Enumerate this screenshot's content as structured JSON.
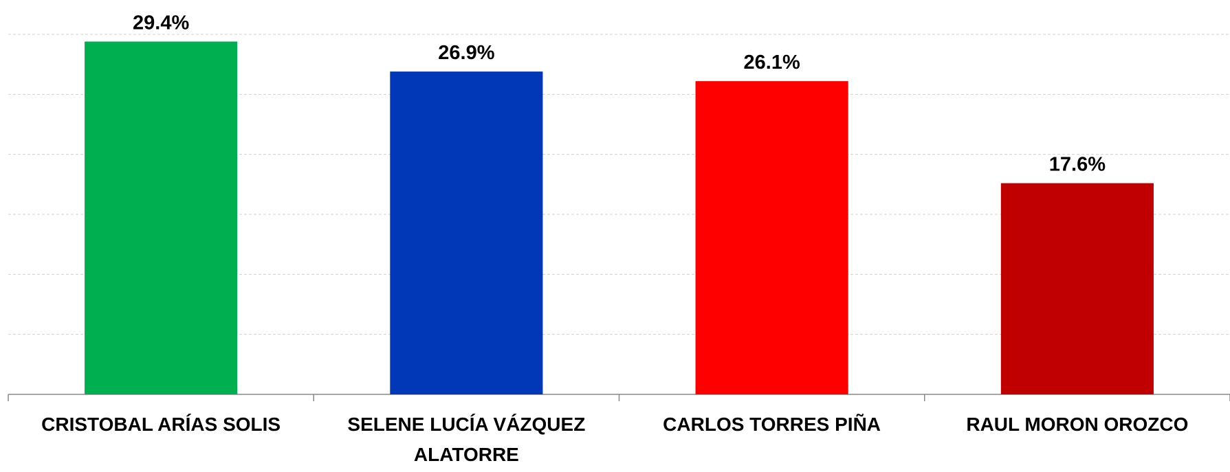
{
  "chart_data": {
    "type": "bar",
    "categories": [
      "CRISTOBAL ARÍAS SOLIS",
      "SELENE LUCÍA VÁZQUEZ ALATORRE",
      "CARLOS TORRES PIÑA",
      "RAUL MORON OROZCO"
    ],
    "values": [
      29.4,
      26.9,
      26.1,
      17.6
    ],
    "value_labels": [
      "29.4%",
      "26.9%",
      "26.1%",
      "17.6%"
    ],
    "colors": [
      "#00b050",
      "#0038b8",
      "#ff0000",
      "#c00000"
    ],
    "ylim": [
      0,
      30
    ],
    "yticks": [
      0,
      5,
      10,
      15,
      20,
      25,
      30
    ],
    "grid": true
  }
}
